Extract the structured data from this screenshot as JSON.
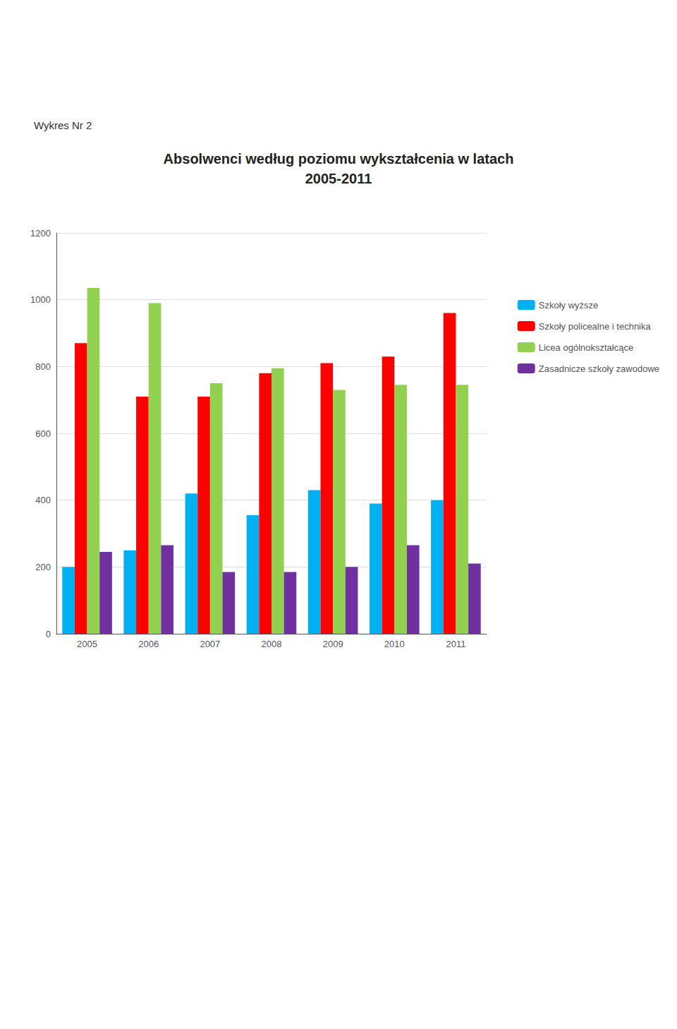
{
  "chart_data": {
    "type": "bar",
    "title": "Absolwenci według poziomu wykształcenia w latach",
    "subtitle": "2005-2011",
    "annotations": [
      "Wykres Nr 2"
    ],
    "categories": [
      "2005",
      "2006",
      "2007",
      "2008",
      "2009",
      "2010",
      "2011"
    ],
    "series": [
      {
        "name": "Szkoły wyższe",
        "color": "#00B0F0",
        "values": [
          200,
          250,
          420,
          355,
          430,
          390,
          400
        ]
      },
      {
        "name": "Szkoły policealne i technika",
        "color": "#FF0000",
        "values": [
          870,
          710,
          710,
          780,
          810,
          830,
          960
        ]
      },
      {
        "name": "Licea ogólnokształcące",
        "color": "#92D050",
        "values": [
          1035,
          990,
          750,
          795,
          730,
          745,
          745
        ]
      },
      {
        "name": "Zasadnicze szkoły zawodowe",
        "color": "#7030A0",
        "values": [
          245,
          265,
          185,
          185,
          200,
          265,
          210
        ]
      }
    ],
    "ylim": [
      0,
      1200
    ],
    "yticks": [
      0,
      200,
      400,
      600,
      800,
      1000,
      1200
    ],
    "grid": true,
    "legend": "right"
  }
}
